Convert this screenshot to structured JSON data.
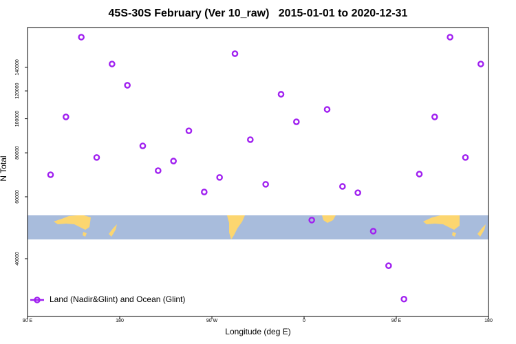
{
  "chart_data": {
    "type": "scatter",
    "title": "45S-30S February (Ver 10_raw)   2015-01-01 to 2020-12-31",
    "x_label": "Longitude (deg E)",
    "y_label": "N Total",
    "xlim": [
      90,
      540
    ],
    "xticks": [
      {
        "value": 90,
        "label": "90 E"
      },
      {
        "value": 180,
        "label": "180"
      },
      {
        "value": 270,
        "label": "90 W"
      },
      {
        "value": 360,
        "label": "0"
      },
      {
        "value": 450,
        "label": "90 E"
      },
      {
        "value": 540,
        "label": "180"
      }
    ],
    "ylim": [
      27400,
      181700
    ],
    "yticks": [
      40000,
      60000,
      80000,
      100000,
      120000,
      140000
    ],
    "ylog": true,
    "legend": "lower left",
    "series": [
      {
        "name": "Land (Nadir&Glint) and Ocean (Glint)",
        "color": "#a020f0",
        "x": [
          112.5,
          127.5,
          142.5,
          157.5,
          172.5,
          187.5,
          202.5,
          217.5,
          232.5,
          247.5,
          262.5,
          277.5,
          292.5,
          307.5,
          322.5,
          337.5,
          352.5,
          367.5,
          382.5,
          397.5,
          412.5,
          427.5,
          442.5,
          457.5,
          472.5,
          487.5,
          502.5,
          517.5,
          532.5
        ],
        "values": [
          69300,
          101200,
          170600,
          77600,
          143100,
          124500,
          83700,
          71200,
          75800,
          92400,
          61900,
          68100,
          153100,
          87200,
          65100,
          117400,
          98000,
          51500,
          106300,
          64200,
          61600,
          47900,
          38200,
          30700,
          69600,
          101200,
          170600,
          77600,
          143100
        ]
      }
    ]
  }
}
